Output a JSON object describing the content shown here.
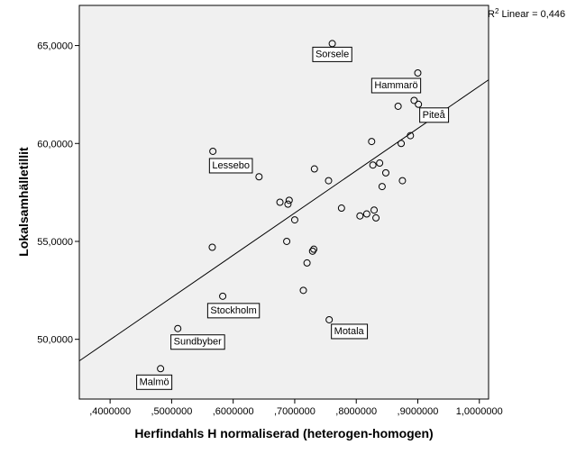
{
  "chart_data": {
    "type": "scatter",
    "xlabel": "Herfindahls H normaliserad (heterogen-homogen)",
    "ylabel": "Lokalsamhälletillit",
    "xlim": [
      0.35,
      1.015
    ],
    "ylim": [
      46.95,
      67.05
    ],
    "x_ticks": [
      0.4,
      0.5,
      0.6,
      0.7,
      0.8,
      0.9,
      1.0
    ],
    "x_tick_labels": [
      ",4000000",
      ",5000000",
      ",6000000",
      ",7000000",
      ",8000000",
      ",9000000",
      "1,0000000"
    ],
    "y_ticks": [
      50,
      55,
      60,
      65
    ],
    "y_tick_labels": [
      "50,0000",
      "55,0000",
      "60,0000",
      "65,0000"
    ],
    "fit_line": {
      "type": "linear",
      "r2_label": "R² Linear = 0,446",
      "points": [
        [
          0.35,
          48.9
        ],
        [
          1.015,
          63.25
        ]
      ]
    },
    "colors": {
      "plot_bg": "#f0f0f0",
      "marker_stroke": "#000000",
      "line": "#000000"
    },
    "points": [
      {
        "x": 0.761,
        "y": 65.1,
        "label": "Sorsele"
      },
      {
        "x": 0.9,
        "y": 63.6,
        "label": "Hammarö"
      },
      {
        "x": 0.894,
        "y": 62.2
      },
      {
        "x": 0.901,
        "y": 62.0,
        "label": "Piteå"
      },
      {
        "x": 0.868,
        "y": 61.9
      },
      {
        "x": 0.888,
        "y": 60.4
      },
      {
        "x": 0.825,
        "y": 60.1
      },
      {
        "x": 0.873,
        "y": 60.0
      },
      {
        "x": 0.567,
        "y": 59.6,
        "label": "Lessebo"
      },
      {
        "x": 0.838,
        "y": 59.0
      },
      {
        "x": 0.827,
        "y": 58.9
      },
      {
        "x": 0.732,
        "y": 58.7
      },
      {
        "x": 0.848,
        "y": 58.5
      },
      {
        "x": 0.642,
        "y": 58.3
      },
      {
        "x": 0.755,
        "y": 58.1
      },
      {
        "x": 0.875,
        "y": 58.1
      },
      {
        "x": 0.842,
        "y": 57.8
      },
      {
        "x": 0.691,
        "y": 57.1
      },
      {
        "x": 0.676,
        "y": 57.0
      },
      {
        "x": 0.689,
        "y": 56.9
      },
      {
        "x": 0.776,
        "y": 56.7
      },
      {
        "x": 0.829,
        "y": 56.6
      },
      {
        "x": 0.817,
        "y": 56.4
      },
      {
        "x": 0.806,
        "y": 56.3
      },
      {
        "x": 0.832,
        "y": 56.2
      },
      {
        "x": 0.7,
        "y": 56.1
      },
      {
        "x": 0.687,
        "y": 55.0
      },
      {
        "x": 0.566,
        "y": 54.7
      },
      {
        "x": 0.731,
        "y": 54.6
      },
      {
        "x": 0.729,
        "y": 54.5
      },
      {
        "x": 0.72,
        "y": 53.9
      },
      {
        "x": 0.714,
        "y": 52.5
      },
      {
        "x": 0.583,
        "y": 52.2,
        "label": "Stockholm"
      },
      {
        "x": 0.756,
        "y": 51.0,
        "label": "Motala"
      },
      {
        "x": 0.51,
        "y": 50.55,
        "label": "Sundbyber"
      },
      {
        "x": 0.482,
        "y": 48.5,
        "label": "Malmö"
      }
    ]
  }
}
